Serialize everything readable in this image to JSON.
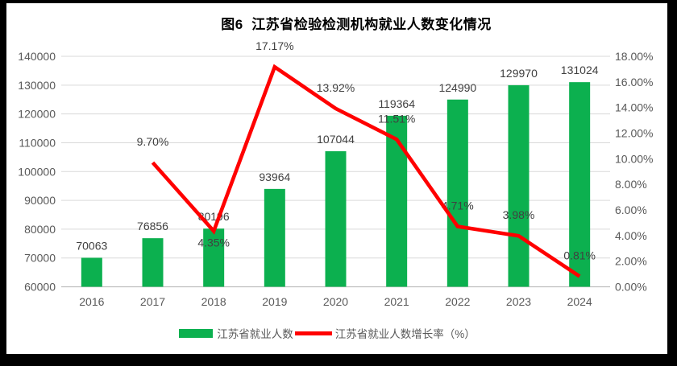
{
  "frame": {
    "border_color": "#000000",
    "canvas_background": "#ffffff"
  },
  "chart_data": {
    "type": "bar+line",
    "title": "图6  江苏省检验检测机构就业人数变化情况",
    "categories": [
      "2016",
      "2017",
      "2018",
      "2019",
      "2020",
      "2021",
      "2022",
      "2023",
      "2024"
    ],
    "series": [
      {
        "name": "江苏省就业人数",
        "type": "bar",
        "axis": "left",
        "color": "#0CB04F",
        "values": [
          70063,
          76856,
          80196,
          93964,
          107044,
          119364,
          124990,
          129970,
          131024
        ],
        "data_labels": [
          "70063",
          "76856",
          "80196",
          "93964",
          "107044",
          "119364",
          "124990",
          "129970",
          "131024"
        ]
      },
      {
        "name": "江苏省就业人数增长率（%）",
        "type": "line",
        "axis": "right",
        "color": "#FF0000",
        "start_category_index": 1,
        "values": [
          9.7,
          4.35,
          17.17,
          13.92,
          11.51,
          4.71,
          3.98,
          0.81
        ],
        "data_labels": [
          "9.70%",
          "4.35%",
          "17.17%",
          "13.92%",
          "11.51%",
          "4.71%",
          "3.98%",
          "0.81%"
        ],
        "label_side": [
          "above",
          "below",
          "above",
          "above",
          "above",
          "above",
          "above",
          "above"
        ]
      }
    ],
    "axes": {
      "left": {
        "min": 60000,
        "max": 140000,
        "step": 10000,
        "tick_labels": [
          "60000",
          "70000",
          "80000",
          "90000",
          "100000",
          "110000",
          "120000",
          "130000",
          "140000"
        ]
      },
      "right": {
        "min": 0,
        "max": 18,
        "step": 2,
        "tick_labels": [
          "0.00%",
          "2.00%",
          "4.00%",
          "6.00%",
          "8.00%",
          "10.00%",
          "12.00%",
          "14.00%",
          "16.00%",
          "18.00%"
        ]
      }
    },
    "grid": true,
    "legend_position": "bottom",
    "style": {
      "axis_text_color": "#595959",
      "data_label_color": "#404040",
      "gridline_color": "#D9D9D9",
      "baseline_color": "#BFBFBF",
      "title_color": "#000000"
    }
  }
}
